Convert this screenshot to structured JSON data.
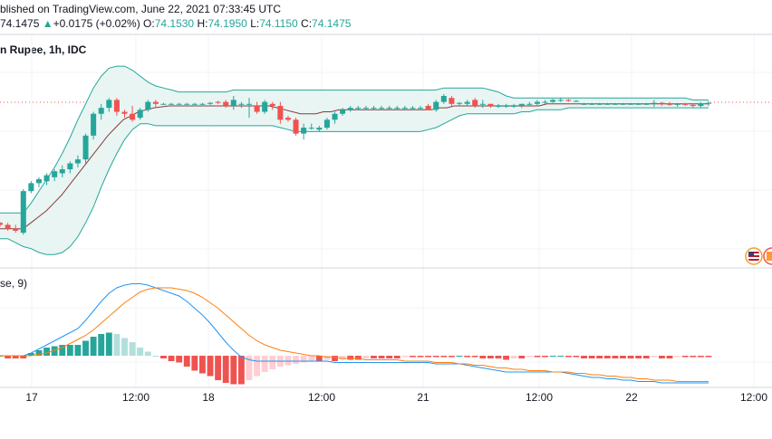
{
  "header": {
    "published": "blished on TradingView.com, June 22, 2021 07:33:45 UTC",
    "last_price": "74.1475",
    "change_arrow": "▲",
    "change": "+0.0175 (+0.02%)",
    "open_label": "O:",
    "open_value": "74.1530",
    "high_label": "H:",
    "high_value": "74.1950",
    "low_label": "L:",
    "low_value": "74.1150",
    "close_label": "C:",
    "close_value": "74.1475"
  },
  "pair_title": "n Rupee, 1h, IDC",
  "macd_title": "se, 9)",
  "colors": {
    "up": "#26a69a",
    "down": "#ef5350",
    "band": "#26a69a",
    "band_fill": "#e8f5f3",
    "basis": "#8b3a3a",
    "macd_line": "#2196f3",
    "signal_line": "#ff7f0e",
    "hist_up_strong": "#26a69a",
    "hist_up_weak": "#b2dfdb",
    "hist_down_strong": "#ef5350",
    "hist_down_weak": "#ffcdd2",
    "grid": "#f0f3fa"
  },
  "icons": [
    "us-flag-icon",
    "in-flag-icon"
  ],
  "chart_data": [
    {
      "type": "candlestick",
      "name": "price",
      "xlabels": [
        "17",
        "12:00",
        "18",
        "12:00",
        "21",
        "12:00",
        "22",
        "12:00"
      ],
      "candles": [
        [
          0.1,
          0.105,
          0.08,
          0.09
        ],
        [
          0.09,
          0.1,
          0.06,
          0.07
        ],
        [
          0.07,
          0.09,
          0.05,
          0.06
        ],
        [
          0.05,
          0.27,
          0.04,
          0.26
        ],
        [
          0.26,
          0.31,
          0.25,
          0.3
        ],
        [
          0.3,
          0.33,
          0.28,
          0.32
        ],
        [
          0.31,
          0.35,
          0.29,
          0.34
        ],
        [
          0.33,
          0.37,
          0.31,
          0.36
        ],
        [
          0.35,
          0.39,
          0.33,
          0.37
        ],
        [
          0.37,
          0.41,
          0.35,
          0.4
        ],
        [
          0.4,
          0.44,
          0.38,
          0.42
        ],
        [
          0.42,
          0.55,
          0.4,
          0.54
        ],
        [
          0.54,
          0.66,
          0.52,
          0.65
        ],
        [
          0.65,
          0.7,
          0.62,
          0.68
        ],
        [
          0.68,
          0.73,
          0.66,
          0.72
        ],
        [
          0.72,
          0.73,
          0.64,
          0.66
        ],
        [
          0.66,
          0.67,
          0.63,
          0.65
        ],
        [
          0.65,
          0.69,
          0.61,
          0.62
        ],
        [
          0.63,
          0.68,
          0.62,
          0.67
        ],
        [
          0.67,
          0.72,
          0.66,
          0.71
        ],
        [
          0.71,
          0.72,
          0.68,
          0.7
        ],
        [
          0.7,
          0.705,
          0.695,
          0.7
        ],
        [
          0.7,
          0.705,
          0.695,
          0.7
        ],
        [
          0.7,
          0.705,
          0.695,
          0.7
        ],
        [
          0.7,
          0.705,
          0.695,
          0.7
        ],
        [
          0.7,
          0.705,
          0.695,
          0.7
        ],
        [
          0.7,
          0.705,
          0.695,
          0.7
        ],
        [
          0.7,
          0.71,
          0.695,
          0.705
        ],
        [
          0.71,
          0.715,
          0.7,
          0.705
        ],
        [
          0.71,
          0.72,
          0.68,
          0.69
        ],
        [
          0.69,
          0.74,
          0.67,
          0.72
        ],
        [
          0.7,
          0.71,
          0.68,
          0.7
        ],
        [
          0.7,
          0.73,
          0.63,
          0.7
        ],
        [
          0.69,
          0.71,
          0.65,
          0.66
        ],
        [
          0.66,
          0.72,
          0.65,
          0.71
        ],
        [
          0.7,
          0.71,
          0.67,
          0.69
        ],
        [
          0.69,
          0.71,
          0.6,
          0.62
        ],
        [
          0.63,
          0.64,
          0.61,
          0.62
        ],
        [
          0.62,
          0.63,
          0.54,
          0.55
        ],
        [
          0.55,
          0.6,
          0.52,
          0.58
        ],
        [
          0.58,
          0.6,
          0.57,
          0.58
        ],
        [
          0.57,
          0.59,
          0.56,
          0.58
        ],
        [
          0.58,
          0.63,
          0.57,
          0.62
        ],
        [
          0.62,
          0.66,
          0.6,
          0.65
        ],
        [
          0.65,
          0.68,
          0.64,
          0.67
        ],
        [
          0.67,
          0.69,
          0.66,
          0.68
        ],
        [
          0.68,
          0.69,
          0.67,
          0.68
        ],
        [
          0.68,
          0.69,
          0.67,
          0.68
        ],
        [
          0.68,
          0.69,
          0.67,
          0.68
        ],
        [
          0.68,
          0.69,
          0.67,
          0.68
        ],
        [
          0.68,
          0.69,
          0.67,
          0.68
        ],
        [
          0.68,
          0.69,
          0.67,
          0.68
        ],
        [
          0.68,
          0.69,
          0.67,
          0.68
        ],
        [
          0.68,
          0.69,
          0.67,
          0.68
        ],
        [
          0.68,
          0.69,
          0.67,
          0.68
        ],
        [
          0.69,
          0.7,
          0.67,
          0.67
        ],
        [
          0.67,
          0.72,
          0.66,
          0.71
        ],
        [
          0.71,
          0.75,
          0.7,
          0.74
        ],
        [
          0.73,
          0.74,
          0.69,
          0.7
        ],
        [
          0.7,
          0.71,
          0.69,
          0.705
        ],
        [
          0.7,
          0.72,
          0.69,
          0.71
        ],
        [
          0.72,
          0.73,
          0.68,
          0.69
        ],
        [
          0.7,
          0.72,
          0.68,
          0.7
        ],
        [
          0.7,
          0.7,
          0.68,
          0.69
        ],
        [
          0.69,
          0.7,
          0.68,
          0.69
        ],
        [
          0.69,
          0.7,
          0.68,
          0.69
        ],
        [
          0.69,
          0.7,
          0.68,
          0.69
        ],
        [
          0.69,
          0.7,
          0.68,
          0.7
        ],
        [
          0.7,
          0.71,
          0.69,
          0.7
        ],
        [
          0.7,
          0.72,
          0.69,
          0.71
        ],
        [
          0.71,
          0.72,
          0.7,
          0.71
        ],
        [
          0.71,
          0.725,
          0.705,
          0.72
        ],
        [
          0.72,
          0.73,
          0.71,
          0.72
        ],
        [
          0.72,
          0.725,
          0.71,
          0.715
        ],
        [
          0.715,
          0.72,
          0.71,
          0.715
        ],
        [
          0.7,
          0.705,
          0.695,
          0.7
        ],
        [
          0.7,
          0.705,
          0.695,
          0.7
        ],
        [
          0.7,
          0.705,
          0.695,
          0.7
        ],
        [
          0.7,
          0.705,
          0.695,
          0.7
        ],
        [
          0.7,
          0.705,
          0.695,
          0.7
        ],
        [
          0.7,
          0.705,
          0.695,
          0.7
        ],
        [
          0.7,
          0.705,
          0.695,
          0.7
        ],
        [
          0.7,
          0.705,
          0.695,
          0.7
        ],
        [
          0.7,
          0.705,
          0.695,
          0.7
        ],
        [
          0.7,
          0.72,
          0.685,
          0.705
        ],
        [
          0.705,
          0.71,
          0.69,
          0.7
        ],
        [
          0.7,
          0.71,
          0.69,
          0.695
        ],
        [
          0.695,
          0.705,
          0.685,
          0.7
        ],
        [
          0.7,
          0.705,
          0.69,
          0.695
        ],
        [
          0.695,
          0.7,
          0.68,
          0.69
        ],
        [
          0.69,
          0.71,
          0.68,
          0.7
        ],
        [
          0.7,
          0.715,
          0.69,
          0.705
        ]
      ],
      "bollinger": {
        "upper": [
          0.15,
          0.15,
          0.15,
          0.15,
          0.2,
          0.26,
          0.32,
          0.38,
          0.45,
          0.53,
          0.62,
          0.7,
          0.78,
          0.84,
          0.88,
          0.89,
          0.89,
          0.87,
          0.84,
          0.81,
          0.79,
          0.78,
          0.77,
          0.76,
          0.76,
          0.76,
          0.76,
          0.76,
          0.76,
          0.76,
          0.77,
          0.77,
          0.77,
          0.77,
          0.77,
          0.77,
          0.77,
          0.77,
          0.77,
          0.77,
          0.77,
          0.77,
          0.77,
          0.77,
          0.77,
          0.77,
          0.77,
          0.77,
          0.77,
          0.77,
          0.77,
          0.77,
          0.77,
          0.77,
          0.77,
          0.77,
          0.77,
          0.78,
          0.78,
          0.78,
          0.78,
          0.78,
          0.78,
          0.77,
          0.76,
          0.74,
          0.73,
          0.73,
          0.73,
          0.73,
          0.73,
          0.73,
          0.73,
          0.73,
          0.73,
          0.73,
          0.73,
          0.73,
          0.73,
          0.73,
          0.73,
          0.73,
          0.73,
          0.73,
          0.73,
          0.73,
          0.73,
          0.73,
          0.73,
          0.72,
          0.72,
          0.72
        ],
        "basis": [
          0.07,
          0.07,
          0.07,
          0.07,
          0.1,
          0.13,
          0.16,
          0.2,
          0.24,
          0.29,
          0.34,
          0.39,
          0.44,
          0.49,
          0.54,
          0.58,
          0.62,
          0.64,
          0.66,
          0.67,
          0.68,
          0.685,
          0.69,
          0.69,
          0.69,
          0.69,
          0.69,
          0.69,
          0.69,
          0.69,
          0.69,
          0.69,
          0.69,
          0.69,
          0.69,
          0.69,
          0.68,
          0.67,
          0.66,
          0.65,
          0.65,
          0.65,
          0.66,
          0.66,
          0.67,
          0.67,
          0.67,
          0.67,
          0.67,
          0.67,
          0.67,
          0.67,
          0.67,
          0.67,
          0.67,
          0.67,
          0.67,
          0.68,
          0.68,
          0.69,
          0.69,
          0.69,
          0.69,
          0.69,
          0.69,
          0.69,
          0.69,
          0.69,
          0.69,
          0.69,
          0.69,
          0.7,
          0.7,
          0.7,
          0.7,
          0.7,
          0.7,
          0.7,
          0.7,
          0.7,
          0.7,
          0.7,
          0.7,
          0.7,
          0.7,
          0.7,
          0.7,
          0.7,
          0.7,
          0.7,
          0.7,
          0.7,
          0.7
        ],
        "lower": [
          0.02,
          0.02,
          0.0,
          -0.02,
          -0.03,
          -0.05,
          -0.06,
          -0.06,
          -0.05,
          -0.02,
          0.03,
          0.1,
          0.18,
          0.28,
          0.37,
          0.45,
          0.52,
          0.57,
          0.6,
          0.6,
          0.59,
          0.59,
          0.59,
          0.59,
          0.59,
          0.59,
          0.59,
          0.59,
          0.59,
          0.59,
          0.59,
          0.59,
          0.59,
          0.59,
          0.59,
          0.59,
          0.58,
          0.57,
          0.56,
          0.56,
          0.56,
          0.56,
          0.56,
          0.56,
          0.56,
          0.56,
          0.56,
          0.56,
          0.56,
          0.56,
          0.56,
          0.56,
          0.56,
          0.56,
          0.56,
          0.57,
          0.58,
          0.6,
          0.62,
          0.64,
          0.65,
          0.65,
          0.65,
          0.65,
          0.65,
          0.65,
          0.65,
          0.66,
          0.66,
          0.67,
          0.67,
          0.67,
          0.67,
          0.68,
          0.68,
          0.68,
          0.68,
          0.68,
          0.68,
          0.68,
          0.68,
          0.68,
          0.68,
          0.68,
          0.68,
          0.68,
          0.68,
          0.68,
          0.68,
          0.68,
          0.68,
          0.68
        ]
      }
    },
    {
      "type": "line",
      "name": "macd",
      "title": "se, 9)",
      "series": [
        {
          "values": [
            0.0,
            0.0,
            0.0,
            0.0,
            0.02,
            0.05,
            0.08,
            0.11,
            0.14,
            0.17,
            0.2,
            0.26,
            0.33,
            0.4,
            0.46,
            0.5,
            0.52,
            0.53,
            0.53,
            0.52,
            0.5,
            0.48,
            0.46,
            0.44,
            0.4,
            0.35,
            0.3,
            0.24,
            0.17,
            0.1,
            0.04,
            -0.01,
            -0.03,
            -0.04,
            -0.04,
            -0.04,
            -0.04,
            -0.04,
            -0.04,
            -0.04,
            -0.04,
            -0.04,
            -0.04,
            -0.05,
            -0.05,
            -0.05,
            -0.05,
            -0.05,
            -0.05,
            -0.05,
            -0.05,
            -0.05,
            -0.05,
            -0.05,
            -0.05,
            -0.05,
            -0.06,
            -0.06,
            -0.06,
            -0.06,
            -0.07,
            -0.08,
            -0.09,
            -0.1,
            -0.11,
            -0.12,
            -0.12,
            -0.12,
            -0.12,
            -0.12,
            -0.12,
            -0.12,
            -0.12,
            -0.13,
            -0.14,
            -0.15,
            -0.16,
            -0.16,
            -0.17,
            -0.17,
            -0.18,
            -0.18,
            -0.19,
            -0.19,
            -0.19,
            -0.2,
            -0.2,
            -0.2,
            -0.2,
            -0.2,
            -0.2,
            -0.2
          ]
        },
        {
          "values": [
            0.0,
            0.0,
            0.0,
            0.0,
            0.0,
            0.01,
            0.02,
            0.04,
            0.06,
            0.09,
            0.12,
            0.15,
            0.19,
            0.24,
            0.29,
            0.34,
            0.39,
            0.43,
            0.47,
            0.49,
            0.5,
            0.5,
            0.5,
            0.49,
            0.48,
            0.46,
            0.43,
            0.39,
            0.35,
            0.3,
            0.25,
            0.2,
            0.15,
            0.11,
            0.08,
            0.06,
            0.04,
            0.03,
            0.02,
            0.01,
            0.0,
            0.0,
            -0.01,
            -0.01,
            -0.02,
            -0.02,
            -0.02,
            -0.03,
            -0.03,
            -0.03,
            -0.03,
            -0.03,
            -0.04,
            -0.04,
            -0.04,
            -0.04,
            -0.05,
            -0.05,
            -0.05,
            -0.06,
            -0.06,
            -0.07,
            -0.07,
            -0.08,
            -0.09,
            -0.09,
            -0.1,
            -0.1,
            -0.11,
            -0.11,
            -0.11,
            -0.12,
            -0.12,
            -0.12,
            -0.13,
            -0.13,
            -0.14,
            -0.14,
            -0.15,
            -0.15,
            -0.16,
            -0.16,
            -0.17,
            -0.17,
            -0.18,
            -0.18,
            -0.18,
            -0.19,
            -0.19,
            -0.19,
            -0.19,
            -0.19
          ]
        }
      ],
      "histogram": [
        0.0,
        -0.02,
        -0.02,
        -0.02,
        0.02,
        0.04,
        0.06,
        0.07,
        0.08,
        0.08,
        0.08,
        0.11,
        0.14,
        0.16,
        0.17,
        0.16,
        0.13,
        0.1,
        0.06,
        0.03,
        0.0,
        -0.02,
        -0.04,
        -0.05,
        -0.08,
        -0.11,
        -0.13,
        -0.15,
        -0.18,
        -0.2,
        -0.21,
        -0.21,
        -0.18,
        -0.15,
        -0.12,
        -0.1,
        -0.08,
        -0.07,
        -0.06,
        -0.05,
        -0.04,
        -0.04,
        -0.03,
        -0.04,
        -0.03,
        -0.03,
        -0.03,
        -0.02,
        -0.02,
        -0.02,
        -0.02,
        -0.02,
        -0.01,
        -0.01,
        -0.01,
        -0.01,
        -0.01,
        -0.01,
        -0.01,
        0.0,
        -0.01,
        -0.01,
        -0.02,
        -0.02,
        -0.02,
        -0.03,
        -0.02,
        -0.02,
        -0.01,
        -0.01,
        -0.01,
        0.0,
        0.0,
        -0.01,
        -0.01,
        -0.02,
        -0.02,
        -0.02,
        -0.02,
        -0.02,
        -0.02,
        -0.02,
        -0.02,
        -0.02,
        -0.01,
        -0.02,
        -0.02,
        -0.01,
        -0.01,
        -0.01,
        -0.01,
        -0.01
      ]
    }
  ]
}
